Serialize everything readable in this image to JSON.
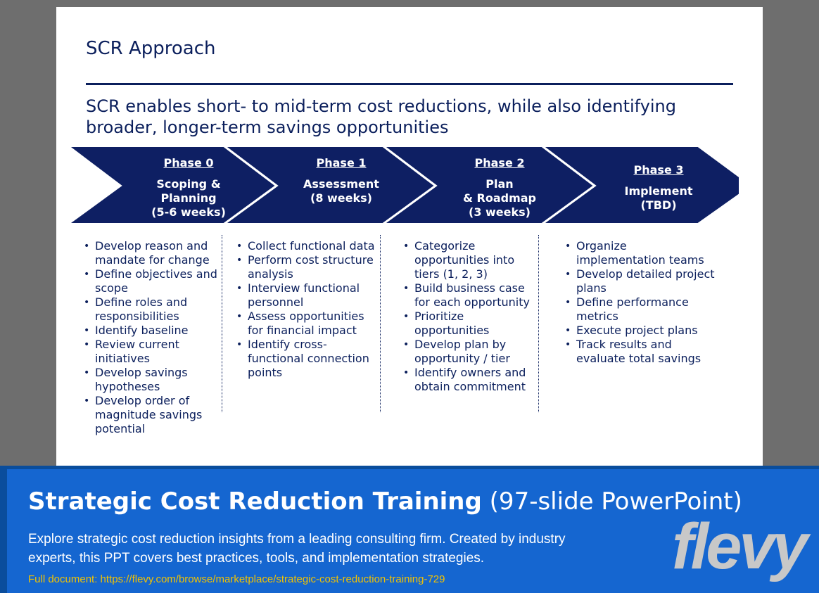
{
  "slide": {
    "title": "SCR Approach",
    "subtitle": "SCR enables short- to mid-term cost reductions, while also identifying broader, longer-term savings opportunities",
    "phases": [
      {
        "label": "Phase 0",
        "body": "Scoping &\nPlanning\n(5-6 weeks)",
        "items": [
          "Develop reason and mandate for change",
          "Define objectives and scope",
          "Define roles and responsibilities",
          "Identify baseline",
          "Review current initiatives",
          "Develop savings hypotheses",
          "Develop order of magnitude savings potential"
        ]
      },
      {
        "label": "Phase 1",
        "body": "Assessment\n(8 weeks)",
        "items": [
          "Collect functional data",
          "Perform cost structure analysis",
          "Interview functional personnel",
          "Assess opportunities for financial impact",
          "Identify cross-functional connection points"
        ]
      },
      {
        "label": "Phase 2",
        "body": "Plan\n& Roadmap\n(3 weeks)",
        "items": [
          "Categorize opportunities into tiers (1, 2, 3)",
          "Build business case for each opportunity",
          "Prioritize opportunities",
          "Develop plan by opportunity / tier",
          "Identify owners and obtain commitment"
        ]
      },
      {
        "label": "Phase 3",
        "body": "Implement\n(TBD)",
        "items": [
          "Organize implementation teams",
          "Develop detailed project plans",
          "Define performance metrics",
          "Execute project plans",
          "Track results and evaluate total savings"
        ]
      }
    ]
  },
  "banner": {
    "title_bold": "Strategic Cost Reduction Training",
    "title_light": "(97-slide PowerPoint)",
    "description": "Explore strategic cost reduction insights from a leading consulting firm. Created by industry experts, this PPT covers best practices, tools, and implementation strategies.",
    "link": "Full document: https://flevy.com/browse/marketplace/strategic-cost-reduction-training-729",
    "logo": "flevy"
  },
  "colors": {
    "navy": "#0b1f5c",
    "chevron": "#0e1f63",
    "banner_blue": "#1566d0",
    "link_yellow": "#f2c200"
  }
}
